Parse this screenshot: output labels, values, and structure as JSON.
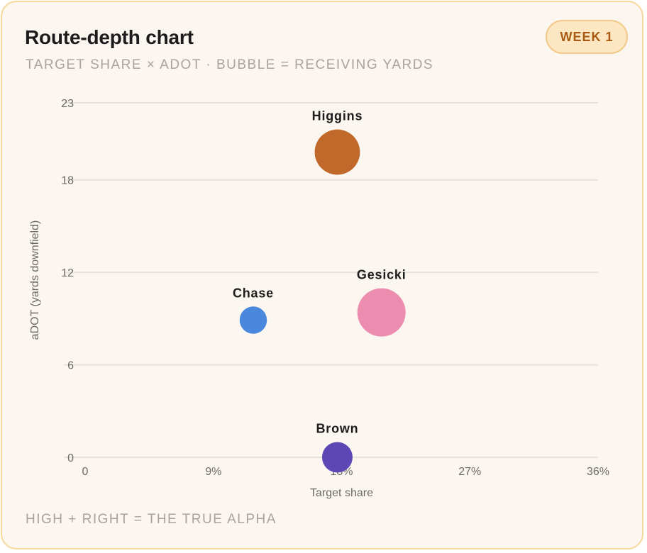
{
  "header": {
    "title": "Route-depth chart",
    "subtitle": "TARGET SHARE × ADOT · BUBBLE = RECEIVING YARDS",
    "badge": "WEEK 1"
  },
  "footer": {
    "note": "HIGH + RIGHT = THE TRUE ALPHA"
  },
  "colors": {
    "card_bg": "#fbf6ef",
    "card_border": "#f5d89a",
    "badge_bg": "#fde7c2",
    "badge_text": "#a85a12",
    "grid": "#e6e1d9"
  },
  "chart_data": {
    "type": "scatter",
    "variant": "bubble",
    "xlabel": "Target share",
    "ylabel": "aDOT (yards downfield)",
    "xlim": [
      0,
      36
    ],
    "ylim": [
      0,
      23
    ],
    "x_ticks": [
      0,
      9,
      18,
      27,
      36
    ],
    "x_tick_labels": [
      "0",
      "9%",
      "18%",
      "27%",
      "36%"
    ],
    "y_ticks": [
      0,
      6,
      12,
      18,
      23
    ],
    "y_tick_labels": [
      "0",
      "6",
      "12",
      "18",
      "23"
    ],
    "grid": "horizontal",
    "points": [
      {
        "name": "Higgins",
        "x": 17.7,
        "y": 19.8,
        "size": 110,
        "color": "#c0692a"
      },
      {
        "name": "Gesicki",
        "x": 20.8,
        "y": 9.4,
        "size": 125,
        "color": "#ec8db0"
      },
      {
        "name": "Chase",
        "x": 11.8,
        "y": 8.9,
        "size": 40,
        "color": "#4a88de"
      },
      {
        "name": "Brown",
        "x": 17.7,
        "y": 0.0,
        "size": 50,
        "color": "#5b48b4"
      }
    ]
  }
}
